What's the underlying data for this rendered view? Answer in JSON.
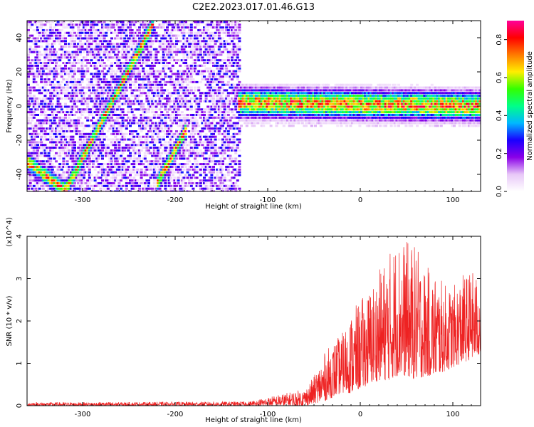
{
  "title": "C2E2.2023.017.01.46.G13",
  "chart_data": [
    {
      "type": "heatmap",
      "xlabel": "Height of straight line (km)",
      "ylabel": "Frequency (Hz)",
      "xlim": [
        -360,
        130
      ],
      "ylim": [
        -50,
        50
      ],
      "xticks": [
        -300,
        -200,
        -100,
        0,
        100
      ],
      "yticks": [
        -40,
        -20,
        0,
        20,
        40
      ],
      "grid": false,
      "colorbar": {
        "label": "Normalized spectral amplitude",
        "range": [
          0.0,
          0.9
        ],
        "ticks": [
          0.0,
          0.2,
          0.4,
          0.6,
          0.8
        ],
        "colormap": [
          "#ffffff",
          "#e8c8f8",
          "#8a00e8",
          "#1a00ff",
          "#00b8ff",
          "#00ff88",
          "#33ff00",
          "#ffee00",
          "#ff7a00",
          "#ff0000",
          "#ff0099"
        ]
      },
      "features": [
        {
          "segment": "descending track",
          "x": [
            -360,
            -318
          ],
          "y": [
            -33,
            -50
          ]
        },
        {
          "segment": "rising track",
          "x": [
            -320,
            -225
          ],
          "y": [
            -50,
            48
          ]
        },
        {
          "segment": "second rising track",
          "x": [
            -220,
            -190
          ],
          "y": [
            -45,
            -15
          ]
        },
        {
          "segment": "horizontal band",
          "x": [
            -132,
            130
          ],
          "y": [
            2,
            0
          ]
        }
      ]
    },
    {
      "type": "line",
      "xlabel": "Height of straight line (km)",
      "ylabel": "SNR (10 * v/v)",
      "yscale_note": "(x10^4)",
      "xlim": [
        -360,
        130
      ],
      "ylim": [
        0,
        4
      ],
      "xticks": [
        -300,
        -200,
        -100,
        0,
        100
      ],
      "yticks": [
        0,
        1,
        2,
        3,
        4
      ],
      "grid": false,
      "color": "#ee2222",
      "envelope": {
        "x": [
          -360,
          -300,
          -200,
          -120,
          -100,
          -80,
          -60,
          -50,
          -40,
          -30,
          -20,
          -10,
          0,
          10,
          20,
          30,
          40,
          50,
          60,
          70,
          80,
          90,
          100,
          110,
          120,
          130
        ],
        "min": [
          0,
          0,
          0,
          0,
          0,
          0,
          0,
          0.05,
          0.1,
          0.2,
          0.3,
          0.3,
          0.4,
          0.5,
          0.6,
          0.6,
          0.7,
          0.7,
          0.6,
          0.7,
          0.7,
          0.8,
          0.9,
          1.0,
          1.1,
          1.2
        ],
        "max": [
          0.08,
          0.08,
          0.09,
          0.1,
          0.2,
          0.3,
          0.4,
          0.7,
          1.2,
          1.5,
          1.7,
          2.2,
          2.5,
          2.8,
          3.2,
          3.6,
          4.0,
          3.9,
          3.8,
          3.3,
          3.2,
          2.9,
          2.8,
          3.1,
          3.2,
          3.0
        ]
      }
    }
  ]
}
